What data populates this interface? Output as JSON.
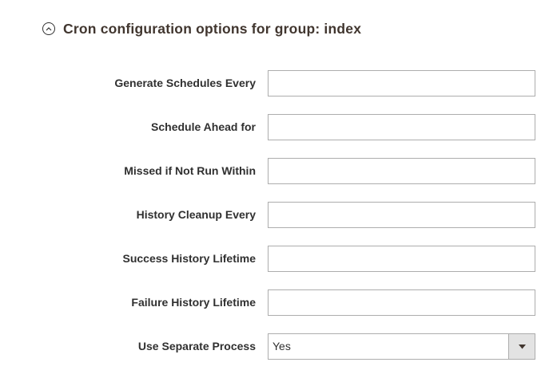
{
  "section": {
    "title": "Cron configuration options for group: index",
    "expanded": true,
    "icon": "collapse-circle-icon"
  },
  "fields": [
    {
      "label": "Generate Schedules Every",
      "type": "text",
      "value": ""
    },
    {
      "label": "Schedule Ahead for",
      "type": "text",
      "value": ""
    },
    {
      "label": "Missed if Not Run Within",
      "type": "text",
      "value": ""
    },
    {
      "label": "History Cleanup Every",
      "type": "text",
      "value": ""
    },
    {
      "label": "Success History Lifetime",
      "type": "text",
      "value": ""
    },
    {
      "label": "Failure History Lifetime",
      "type": "text",
      "value": ""
    },
    {
      "label": "Use Separate Process",
      "type": "select",
      "value": "Yes",
      "icon": "caret-down-icon"
    }
  ],
  "colors": {
    "title": "#41362f",
    "label": "#303030",
    "input_border": "#adadad",
    "select_button_bg": "#e3e3e3"
  }
}
